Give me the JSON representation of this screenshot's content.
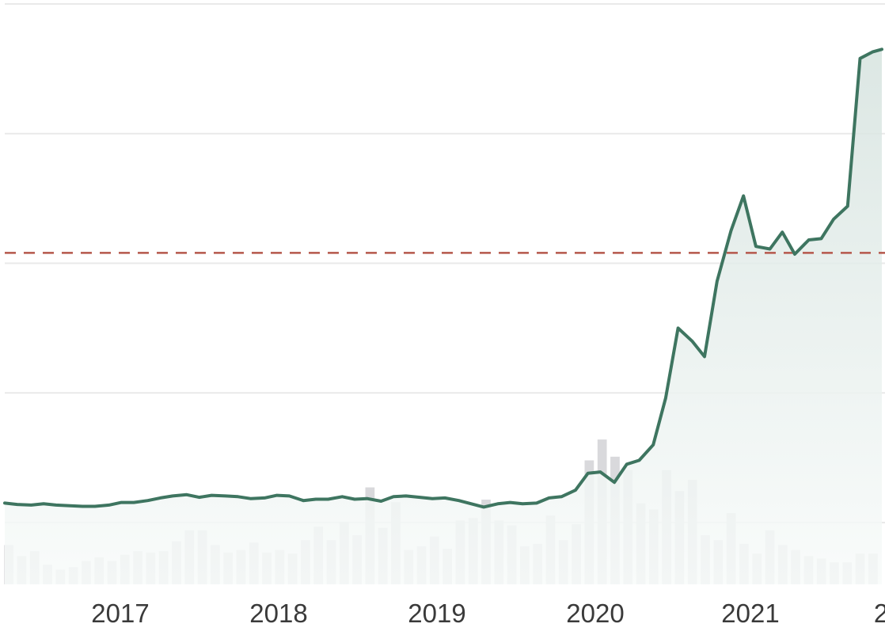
{
  "chart_data": {
    "type": "line",
    "title": "",
    "xlabel": "",
    "ylabel": "",
    "x_ticks": [
      "2017",
      "2018",
      "2019",
      "2020",
      "2021",
      "2"
    ],
    "x_range": [
      2016.2,
      2021.84
    ],
    "y_range": [
      -3.5,
      38.5
    ],
    "grid": true,
    "gridlines_y": [
      0,
      10,
      20,
      30,
      40
    ],
    "reference_line": {
      "value": 20.8,
      "style": "dashed",
      "color": "#b5574b"
    },
    "colors": {
      "line": "#3e7560",
      "area_top": "#d6e3df",
      "area_bottom": "#f8fbfa",
      "volume_bar": "#d9d9dc",
      "grid": "#e9e9e9"
    },
    "series": [
      {
        "type": "line",
        "x": [
          2016.2,
          2016.28,
          2016.37,
          2016.45,
          2016.53,
          2016.62,
          2016.7,
          2016.78,
          2016.87,
          2016.95,
          2017.03,
          2017.12,
          2017.2,
          2017.28,
          2017.37,
          2017.45,
          2017.53,
          2017.62,
          2017.7,
          2017.78,
          2017.87,
          2017.95,
          2018.03,
          2018.12,
          2018.2,
          2018.28,
          2018.37,
          2018.45,
          2018.53,
          2018.62,
          2018.7,
          2018.78,
          2018.87,
          2018.95,
          2019.03,
          2019.12,
          2019.2,
          2019.28,
          2019.37,
          2019.45,
          2019.53,
          2019.62,
          2019.7,
          2019.78,
          2019.87,
          2019.95,
          2020.03,
          2020.12,
          2020.2,
          2020.28,
          2020.37,
          2020.45,
          2020.53,
          2020.62,
          2020.7,
          2020.78,
          2020.87,
          2020.95,
          2021.03,
          2021.12,
          2021.2,
          2021.28,
          2021.37,
          2021.45,
          2021.53,
          2021.62,
          2021.7,
          2021.78,
          2021.84
        ],
        "values": [
          1.5,
          1.4,
          1.35,
          1.45,
          1.35,
          1.3,
          1.25,
          1.25,
          1.35,
          1.55,
          1.55,
          1.7,
          1.9,
          2.05,
          2.15,
          1.95,
          2.1,
          2.05,
          2.0,
          1.85,
          1.9,
          2.1,
          2.05,
          1.7,
          1.8,
          1.8,
          2.0,
          1.8,
          1.85,
          1.65,
          2.0,
          2.05,
          1.95,
          1.85,
          1.9,
          1.7,
          1.45,
          1.2,
          1.45,
          1.55,
          1.45,
          1.5,
          1.9,
          2.0,
          2.5,
          3.8,
          3.9,
          3.1,
          4.5,
          4.8,
          6.0,
          9.6,
          15.0,
          14.0,
          12.8,
          18.6,
          22.5,
          25.2,
          21.3,
          21.1,
          22.4,
          20.7,
          21.8,
          21.9,
          23.4,
          24.4,
          35.8,
          36.3,
          36.5
        ]
      }
    ],
    "volume": {
      "type": "bar",
      "values": [
        3.2,
        2.3,
        2.7,
        1.6,
        1.2,
        1.4,
        1.9,
        2.2,
        1.9,
        2.4,
        2.7,
        2.6,
        2.7,
        3.5,
        4.4,
        4.4,
        3.2,
        2.6,
        2.8,
        3.4,
        2.6,
        2.8,
        2.5,
        3.6,
        4.7,
        3.6,
        5.1,
        4.0,
        7.9,
        4.6,
        6.7,
        2.8,
        3.1,
        3.9,
        2.9,
        5.2,
        5.4,
        6.9,
        5.2,
        4.8,
        3.1,
        3.3,
        5.6,
        3.6,
        4.9,
        10.1,
        11.8,
        10.4,
        9.3,
        6.6,
        6.1,
        9.3,
        7.6,
        8.5,
        4.0,
        3.6,
        5.8,
        3.3,
        2.5,
        4.4,
        3.2,
        2.8,
        2.3,
        2.1,
        1.8,
        1.8,
        2.5,
        2.5
      ]
    }
  }
}
